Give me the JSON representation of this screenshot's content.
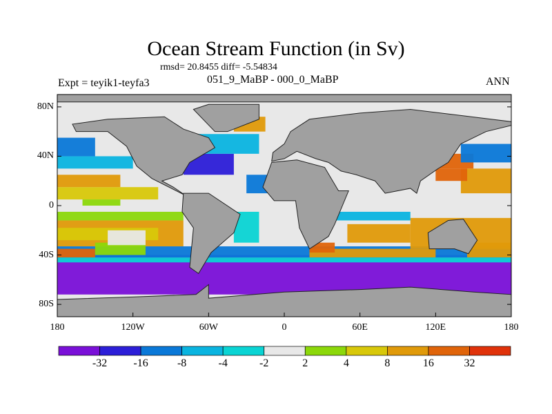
{
  "title": "Ocean Stream Function (in Sv)",
  "stats": "rmsd= 20.8455 diff= -5.54834",
  "left_label": "Expt = teyik1-teyfa3",
  "center_label": "051_9_MaBP - 000_0_MaBP",
  "right_label": "ANN",
  "lat_labels": [
    "80N",
    "40N",
    "0",
    "40S",
    "80S"
  ],
  "lat_values": [
    80,
    40,
    0,
    -40,
    -80
  ],
  "lon_labels": [
    "180",
    "120W",
    "60W",
    "0",
    "60E",
    "120E",
    "180"
  ],
  "lon_values": [
    -180,
    -120,
    -60,
    0,
    60,
    120,
    180
  ],
  "colorbar": {
    "levels": [
      "-32",
      "-16",
      "-8",
      "-4",
      "-2",
      "2",
      "4",
      "8",
      "16",
      "32"
    ],
    "colors": [
      "#7a10d8",
      "#2c1ed8",
      "#0a78d8",
      "#0ab4e0",
      "#0ad4d4",
      "#e8e8e8",
      "#8cd80a",
      "#d8c80a",
      "#e09a0a",
      "#e0640a",
      "#e0320a"
    ]
  },
  "land_color": "#a0a0a0"
}
